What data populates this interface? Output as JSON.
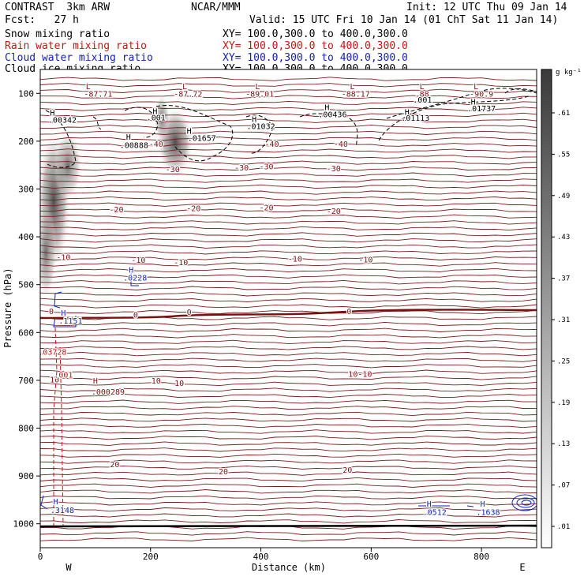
{
  "header": {
    "model": "CONTRAST  3km ARW",
    "org": "NCAR/MMM",
    "init": "Init: 12 UTC Thu 09 Jan 14",
    "fcst": "Fcst:   27 h",
    "valid": "Valid: 15 UTC Fri 10 Jan 14 (01 ChT Sat 11 Jan 14)",
    "fields": [
      {
        "name": "Snow mixing ratio",
        "xy": "XY= 100.0,300.0 to 400.0,300.0",
        "color": "#000000"
      },
      {
        "name": "Rain water mixing ratio",
        "xy": "XY= 100.0,300.0 to 400.0,300.0",
        "color": "#cc1111"
      },
      {
        "name": "Cloud water mixing ratio",
        "xy": "XY= 100.0,300.0 to 400.0,300.0",
        "color": "#1122bb"
      },
      {
        "name": "Cloud ice mixing ratio",
        "xy": "XY= 100.0,300.0 to 400.0,300.0",
        "color": "#000000"
      }
    ]
  },
  "chart_data": {
    "type": "heatmap",
    "xlabel": "Distance (km)",
    "ylabel": "Pressure (hPa)",
    "xlim": [
      0,
      900
    ],
    "ylim": [
      1050,
      50
    ],
    "x_ticks": [
      0,
      200,
      400,
      600,
      800
    ],
    "y_ticks": [
      100,
      200,
      300,
      400,
      500,
      600,
      700,
      800,
      900,
      1000
    ],
    "x_end_labels": {
      "left": "W",
      "right": "E"
    },
    "colorbar": {
      "unit": "g kg⁻¹",
      "ticks": [
        ".01",
        ".07",
        ".13",
        ".19",
        ".25",
        ".31",
        ".37",
        ".43",
        ".49",
        ".55",
        ".61"
      ]
    },
    "temperature_labels": [
      {
        "x": 210,
        "p": 205,
        "text": "-40"
      },
      {
        "x": 420,
        "p": 205,
        "text": "-40"
      },
      {
        "x": 545,
        "p": 205,
        "text": "-40"
      },
      {
        "x": 240,
        "p": 258,
        "text": "-30"
      },
      {
        "x": 365,
        "p": 255,
        "text": "-30"
      },
      {
        "x": 410,
        "p": 252,
        "text": "-30"
      },
      {
        "x": 532,
        "p": 256,
        "text": "-30"
      },
      {
        "x": 138,
        "p": 342,
        "text": "-20"
      },
      {
        "x": 278,
        "p": 340,
        "text": "-20"
      },
      {
        "x": 410,
        "p": 338,
        "text": "-20"
      },
      {
        "x": 532,
        "p": 345,
        "text": "-20"
      },
      {
        "x": 42,
        "p": 442,
        "text": "-10"
      },
      {
        "x": 178,
        "p": 448,
        "text": "-10"
      },
      {
        "x": 255,
        "p": 453,
        "text": "-10"
      },
      {
        "x": 462,
        "p": 445,
        "text": "-10"
      },
      {
        "x": 590,
        "p": 447,
        "text": "-10"
      },
      {
        "x": 20,
        "p": 555,
        "text": "0"
      },
      {
        "x": 173,
        "p": 562,
        "text": "0"
      },
      {
        "x": 270,
        "p": 557,
        "text": "0"
      },
      {
        "x": 560,
        "p": 555,
        "text": "0"
      },
      {
        "x": 26,
        "p": 698,
        "text": "10"
      },
      {
        "x": 210,
        "p": 700,
        "text": "10"
      },
      {
        "x": 252,
        "p": 705,
        "text": "10"
      },
      {
        "x": 580,
        "p": 686,
        "text": "10-10"
      },
      {
        "x": 135,
        "p": 875,
        "text": "20"
      },
      {
        "x": 332,
        "p": 890,
        "text": "20"
      },
      {
        "x": 557,
        "p": 887,
        "text": "20"
      },
      {
        "x": 87,
        "p": 85,
        "text": "L"
      },
      {
        "x": 105,
        "p": 100,
        "text": "-87.71"
      },
      {
        "x": 262,
        "p": 85,
        "text": "L"
      },
      {
        "x": 268,
        "p": 100,
        "text": "-87.72"
      },
      {
        "x": 394,
        "p": 85,
        "text": "L"
      },
      {
        "x": 398,
        "p": 100,
        "text": "-89.01"
      },
      {
        "x": 566,
        "p": 85,
        "text": "L"
      },
      {
        "x": 572,
        "p": 100,
        "text": "-88.17"
      },
      {
        "x": 692,
        "p": 85,
        "text": "L"
      },
      {
        "x": 692,
        "p": 100,
        "text": ".88"
      },
      {
        "x": 790,
        "p": 85,
        "text": "L"
      },
      {
        "x": 800,
        "p": 100,
        "text": "-90.9"
      },
      {
        "x": 100,
        "p": 700,
        "text": "H"
      },
      {
        "x": 123,
        "p": 723,
        "text": ".000289"
      }
    ],
    "snow_labels": [
      {
        "x": 22,
        "p": 140,
        "text": "H"
      },
      {
        "x": 40,
        "p": 155,
        "text": ".00342"
      },
      {
        "x": 160,
        "p": 190,
        "text": "H"
      },
      {
        "x": 170,
        "p": 208,
        "text": ".00888"
      },
      {
        "x": 208,
        "p": 137,
        "text": "H"
      },
      {
        "x": 210,
        "p": 150,
        "text": ".001"
      },
      {
        "x": 270,
        "p": 178,
        "text": "H"
      },
      {
        "x": 293,
        "p": 193,
        "text": ".01657"
      },
      {
        "x": 388,
        "p": 153,
        "text": "H"
      },
      {
        "x": 400,
        "p": 168,
        "text": ".01032"
      },
      {
        "x": 520,
        "p": 128,
        "text": "H"
      },
      {
        "x": 530,
        "p": 143,
        "text": ".00436"
      },
      {
        "x": 665,
        "p": 138,
        "text": "H"
      },
      {
        "x": 680,
        "p": 151,
        "text": ".01113"
      },
      {
        "x": 693,
        "p": 113,
        "text": ".001"
      },
      {
        "x": 785,
        "p": 117,
        "text": "H"
      },
      {
        "x": 800,
        "p": 131,
        "text": ".01737"
      }
    ],
    "rain_labels": [
      {
        "x": 22,
        "p": 640,
        "text": ".03728"
      },
      {
        "x": 42,
        "p": 688,
        "text": ".001"
      }
    ],
    "cloud_water_labels": [
      {
        "x": 165,
        "p": 468,
        "text": "H"
      },
      {
        "x": 172,
        "p": 485,
        "text": ".0228"
      },
      {
        "x": 42,
        "p": 558,
        "text": "H"
      },
      {
        "x": 55,
        "p": 575,
        "text": ".1151"
      },
      {
        "x": 28,
        "p": 953,
        "text": "H"
      },
      {
        "x": 40,
        "p": 971,
        "text": ".3148"
      },
      {
        "x": 705,
        "p": 958,
        "text": "H"
      },
      {
        "x": 715,
        "p": 975,
        "text": ".0512"
      },
      {
        "x": 802,
        "p": 958,
        "text": "H"
      },
      {
        "x": 812,
        "p": 975,
        "text": ".1638"
      }
    ]
  }
}
